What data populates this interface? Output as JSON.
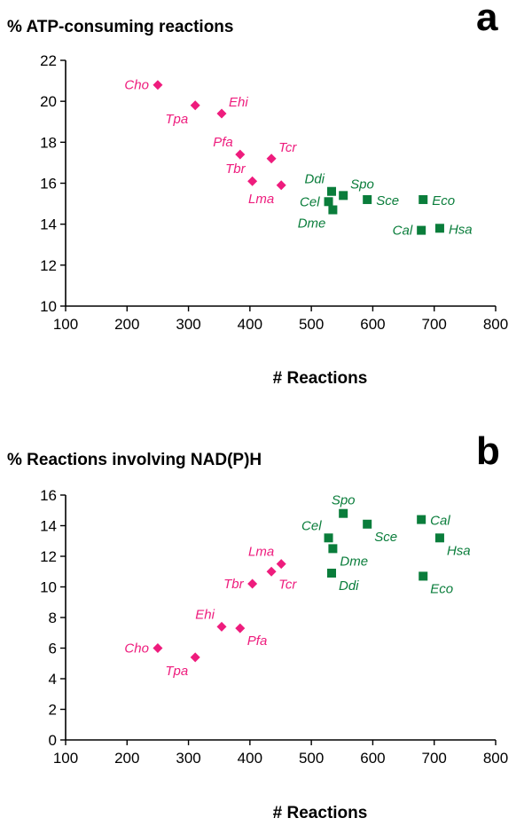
{
  "colors": {
    "group1": "#ee1c7d",
    "group2": "#0a7d3b",
    "axis": "#000000"
  },
  "chart_data": [
    {
      "type": "scatter",
      "title": "% ATP-consuming reactions",
      "panel": "a",
      "xlabel": "# Reactions",
      "ylabel": "",
      "xlim": [
        100,
        800
      ],
      "ylim": [
        10,
        22
      ],
      "xticks": [
        "100",
        "200",
        "300",
        "400",
        "500",
        "600",
        "700",
        "800"
      ],
      "yticks": [
        "10",
        "12",
        "14",
        "16",
        "18",
        "20",
        "22"
      ],
      "grid": false,
      "series": [
        {
          "marker": "diamond",
          "color": "#ee1c7d",
          "points": [
            {
              "label": "Cho",
              "x": 250,
              "y": 20.8,
              "label_pos": "left"
            },
            {
              "label": "Tpa",
              "x": 311,
              "y": 19.8,
              "label_pos": "below-left"
            },
            {
              "label": "Ehi",
              "x": 354,
              "y": 19.4,
              "label_pos": "above-right"
            },
            {
              "label": "Pfa",
              "x": 384,
              "y": 17.4,
              "label_pos": "above-left"
            },
            {
              "label": "Tcr",
              "x": 435,
              "y": 17.2,
              "label_pos": "above-right"
            },
            {
              "label": "Tbr",
              "x": 404,
              "y": 16.1,
              "label_pos": "above-left"
            },
            {
              "label": "Lma",
              "x": 451,
              "y": 15.9,
              "label_pos": "below-left"
            }
          ]
        },
        {
          "marker": "square",
          "color": "#0a7d3b",
          "points": [
            {
              "label": "Ddi",
              "x": 533,
              "y": 15.6,
              "label_pos": "above-left"
            },
            {
              "label": "Spo",
              "x": 552,
              "y": 15.4,
              "label_pos": "above-right"
            },
            {
              "label": "Cel",
              "x": 528,
              "y": 15.1,
              "label_pos": "left"
            },
            {
              "label": "Dme",
              "x": 535,
              "y": 14.7,
              "label_pos": "below-left"
            },
            {
              "label": "Sce",
              "x": 591,
              "y": 15.2,
              "label_pos": "right"
            },
            {
              "label": "Eco",
              "x": 682,
              "y": 15.2,
              "label_pos": "right"
            },
            {
              "label": "Cal",
              "x": 679,
              "y": 13.7,
              "label_pos": "left"
            },
            {
              "label": "Hsa",
              "x": 709,
              "y": 13.8,
              "label_pos": "right"
            }
          ]
        }
      ]
    },
    {
      "type": "scatter",
      "title": "% Reactions involving NAD(P)H",
      "panel": "b",
      "xlabel": "# Reactions",
      "ylabel": "",
      "xlim": [
        100,
        800
      ],
      "ylim": [
        0,
        16
      ],
      "xticks": [
        "100",
        "200",
        "300",
        "400",
        "500",
        "600",
        "700",
        "800"
      ],
      "yticks": [
        "0",
        "2",
        "4",
        "6",
        "8",
        "10",
        "12",
        "14",
        "16"
      ],
      "grid": false,
      "series": [
        {
          "marker": "diamond",
          "color": "#ee1c7d",
          "points": [
            {
              "label": "Cho",
              "x": 250,
              "y": 6.0,
              "label_pos": "left"
            },
            {
              "label": "Tpa",
              "x": 311,
              "y": 5.4,
              "label_pos": "below-left"
            },
            {
              "label": "Ehi",
              "x": 354,
              "y": 7.4,
              "label_pos": "above-left"
            },
            {
              "label": "Pfa",
              "x": 384,
              "y": 7.3,
              "label_pos": "below-right"
            },
            {
              "label": "Tbr",
              "x": 404,
              "y": 10.2,
              "label_pos": "left"
            },
            {
              "label": "Lma",
              "x": 451,
              "y": 11.5,
              "label_pos": "above-left"
            },
            {
              "label": "Tcr",
              "x": 435,
              "y": 11.0,
              "label_pos": "below-right"
            }
          ]
        },
        {
          "marker": "square",
          "color": "#0a7d3b",
          "points": [
            {
              "label": "Spo",
              "x": 552,
              "y": 14.8,
              "label_pos": "above"
            },
            {
              "label": "Cel",
              "x": 528,
              "y": 13.2,
              "label_pos": "above-left"
            },
            {
              "label": "Sce",
              "x": 591,
              "y": 14.1,
              "label_pos": "below-right"
            },
            {
              "label": "Dme",
              "x": 535,
              "y": 12.5,
              "label_pos": "below-right"
            },
            {
              "label": "Ddi",
              "x": 533,
              "y": 10.9,
              "label_pos": "below-right"
            },
            {
              "label": "Cal",
              "x": 679,
              "y": 14.4,
              "label_pos": "right"
            },
            {
              "label": "Hsa",
              "x": 709,
              "y": 13.2,
              "label_pos": "below-right"
            },
            {
              "label": "Eco",
              "x": 682,
              "y": 10.7,
              "label_pos": "below-right"
            }
          ]
        }
      ]
    }
  ]
}
